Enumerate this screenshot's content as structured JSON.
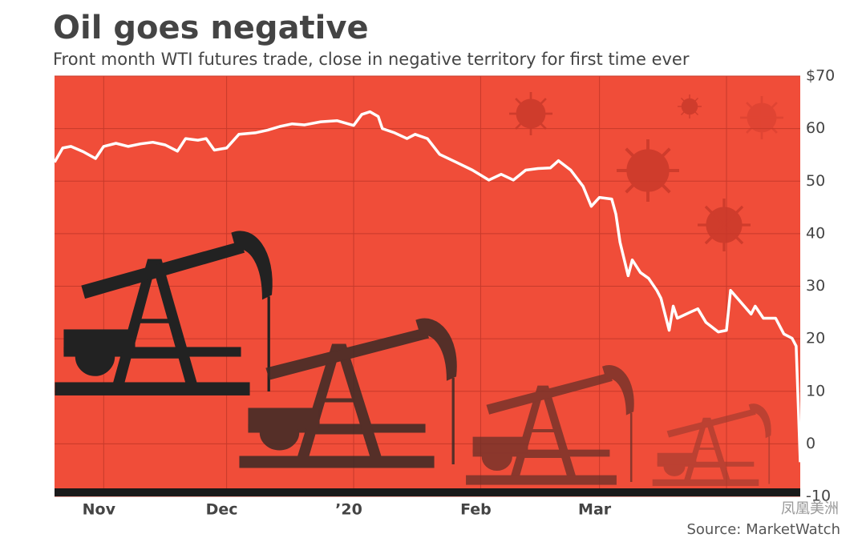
{
  "chart_data": {
    "type": "line",
    "title": "Oil goes negative",
    "subtitle": "Front month WTI futures trade, close in negative territory for first time ever",
    "source": "Source: MarketWatch",
    "watermark": "凤凰美洲",
    "color": "#ffffff",
    "x": [
      -12,
      -10,
      -8,
      -5,
      -2,
      0,
      3,
      6,
      9,
      12,
      15,
      18,
      20,
      23,
      25,
      27,
      30,
      33,
      37,
      40,
      43,
      46,
      49,
      53,
      57,
      61,
      63,
      65,
      67,
      68,
      71,
      74,
      76,
      79,
      82,
      86,
      90,
      94,
      97,
      100,
      103,
      106,
      109,
      111,
      114,
      117,
      119,
      121,
      124,
      125,
      126,
      128,
      129,
      131,
      133,
      135,
      136,
      138,
      139,
      140,
      143,
      145,
      147,
      150,
      152,
      153,
      155,
      158,
      159,
      161,
      164,
      166,
      168,
      169,
      170
    ],
    "values": [
      53.6,
      56.3,
      56.6,
      55.6,
      54.3,
      56.6,
      57.2,
      56.6,
      57.1,
      57.4,
      56.9,
      55.7,
      58.1,
      57.8,
      58.1,
      55.9,
      56.3,
      58.9,
      59.2,
      59.7,
      60.4,
      60.9,
      60.7,
      61.3,
      61.5,
      60.6,
      62.7,
      63.2,
      62.3,
      60.0,
      59.2,
      58.1,
      58.9,
      58.1,
      55.1,
      53.6,
      52.1,
      50.2,
      51.3,
      50.2,
      52.1,
      52.4,
      52.5,
      53.9,
      52.1,
      49.0,
      45.2,
      46.9,
      46.6,
      43.7,
      38.4,
      32.0,
      35.0,
      32.6,
      31.5,
      29.2,
      27.7,
      21.6,
      26.2,
      23.9,
      25.0,
      25.7,
      23.1,
      21.3,
      21.6,
      29.2,
      27.4,
      24.7,
      26.2,
      23.9,
      23.9,
      20.9,
      20.1,
      18.6,
      -3.5
    ],
    "xlim": [
      -12,
      170
    ],
    "xticks": [
      {
        "value": 0,
        "label": "Nov"
      },
      {
        "value": 30,
        "label": "Dec"
      },
      {
        "value": 61,
        "label": "’20"
      },
      {
        "value": 92,
        "label": "Feb"
      },
      {
        "value": 121,
        "label": "Mar"
      },
      {
        "value": 152,
        "label": null
      }
    ],
    "ylim": [
      -10,
      70
    ],
    "yticks": [
      -10,
      0,
      10,
      20,
      30,
      40,
      50,
      60,
      {
        "value": 70,
        "label": "$70"
      }
    ],
    "grid": true
  }
}
